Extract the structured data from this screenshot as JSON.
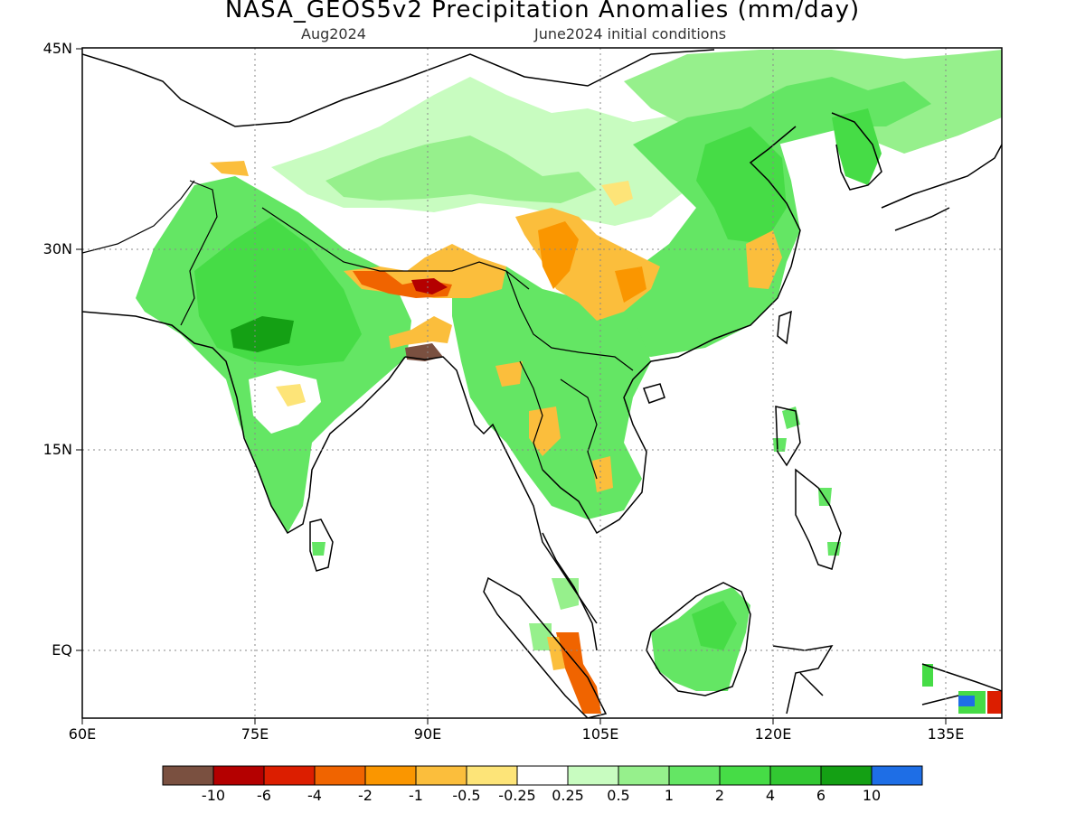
{
  "header": {
    "title": "NASA_GEOS5v2 Precipitation Anomalies (mm/day)",
    "subtitle_left": "Aug2024",
    "subtitle_right": "June2024 initial conditions"
  },
  "axes": {
    "lat_labels": [
      "45N",
      "30N",
      "15N",
      "EQ"
    ],
    "lon_labels": [
      "60E",
      "75E",
      "90E",
      "105E",
      "120E",
      "135E"
    ]
  },
  "colorbar": {
    "colors": [
      "#7a5040",
      "#b40000",
      "#dc1e00",
      "#f06400",
      "#fa9600",
      "#fbbe3c",
      "#fde478",
      "#ffffff",
      "#c8fcc0",
      "#96f08c",
      "#64e664",
      "#46dc46",
      "#32c832",
      "#14a014",
      "#1e6ee6"
    ],
    "labels": [
      "-10",
      "-6",
      "-4",
      "-2",
      "-1",
      "-0.5",
      "-0.25",
      "0.25",
      "0.5",
      "1",
      "2",
      "4",
      "6",
      "10"
    ]
  },
  "map_data": {
    "type": "gridded precipitation anomaly map",
    "region": {
      "lon_range": [
        60,
        140
      ],
      "lat_range": [
        -6,
        45
      ]
    },
    "grid_lines": "dotted",
    "anomaly_regions": [
      {
        "place": "Central and northern India",
        "value_range": [
          1,
          6
        ],
        "sign": "positive"
      },
      {
        "place": "Deccan plateau",
        "value_range": [
          -1,
          0.25
        ],
        "sign": "mixed"
      },
      {
        "place": "Nepal / Himalaya foothills",
        "value_range": [
          -6,
          -1
        ],
        "sign": "negative"
      },
      {
        "place": "Bangladesh coast",
        "value_range": [
          -10,
          -6
        ],
        "sign": "negative"
      },
      {
        "place": "Tibetan plateau",
        "value_range": [
          0.25,
          2
        ],
        "sign": "positive"
      },
      {
        "place": "Sichuan / southwest China",
        "value_range": [
          -2,
          -0.5
        ],
        "sign": "negative"
      },
      {
        "place": "Eastern and northern China",
        "value_range": [
          0.5,
          4
        ],
        "sign": "positive"
      },
      {
        "place": "Yangtze delta",
        "value_range": [
          -1,
          -0.5
        ],
        "sign": "negative"
      },
      {
        "place": "Myanmar / Indochina",
        "value_range": [
          -1,
          2
        ],
        "sign": "mixed"
      },
      {
        "place": "Borneo",
        "value_range": [
          1,
          4
        ],
        "sign": "positive"
      },
      {
        "place": "Southern Sumatra",
        "value_range": [
          -4,
          -1
        ],
        "sign": "negative"
      },
      {
        "place": "New Guinea",
        "value_range": [
          -4,
          10
        ],
        "sign": "mixed"
      }
    ]
  }
}
